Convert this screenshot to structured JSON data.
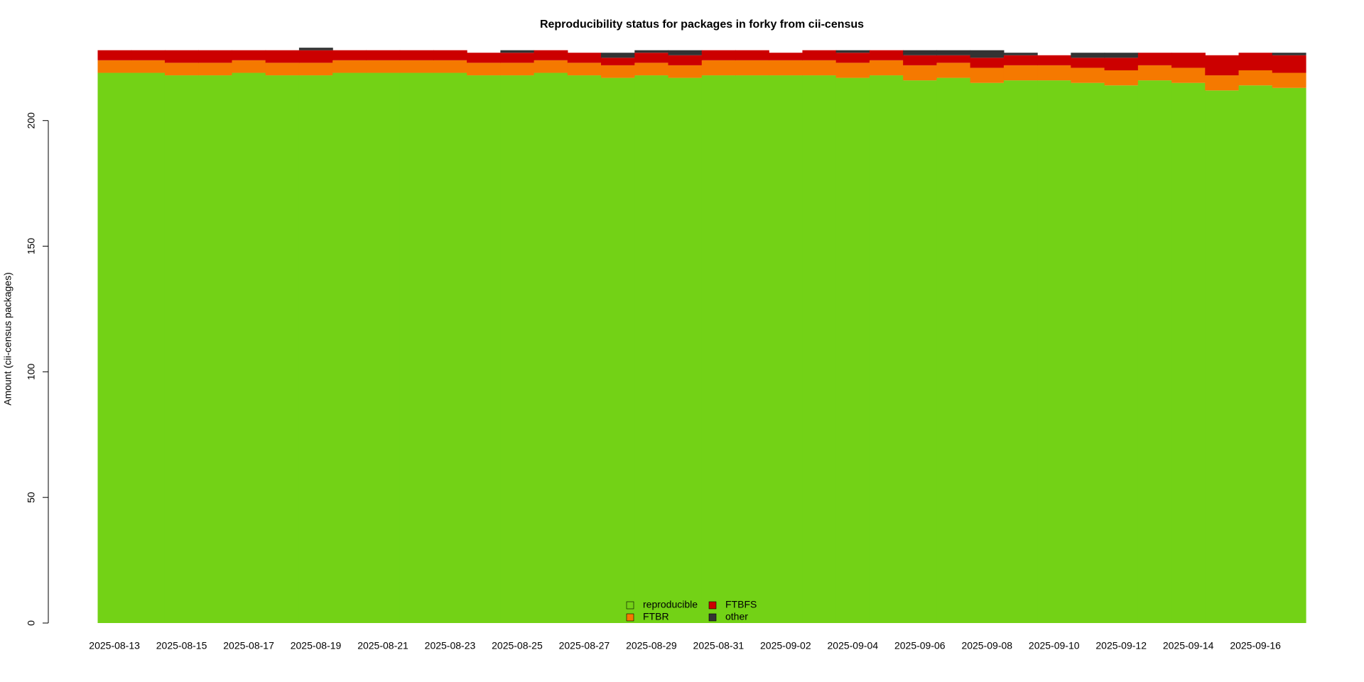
{
  "chart_data": {
    "type": "stacked_step_area",
    "title": "Reproducibility status for packages in forky from cii-census",
    "y_label": "Amount (cii-census packages)",
    "categories": [
      "2025-08-13",
      null,
      "2025-08-15",
      null,
      "2025-08-17",
      null,
      "2025-08-19",
      null,
      "2025-08-21",
      null,
      "2025-08-23",
      null,
      "2025-08-25",
      null,
      "2025-08-27",
      null,
      "2025-08-29",
      null,
      "2025-08-31",
      null,
      "2025-09-02",
      null,
      "2025-09-04",
      null,
      "2025-09-06",
      null,
      "2025-09-08",
      null,
      "2025-09-10",
      null,
      "2025-09-12",
      null,
      "2025-09-14",
      null,
      "2025-09-16",
      null
    ],
    "series": [
      {
        "name": "reproducible",
        "color": "#73d216",
        "values": [
          219,
          219,
          218,
          218,
          219,
          218,
          218,
          219,
          219,
          219,
          219,
          218,
          218,
          219,
          218,
          217,
          218,
          217,
          218,
          218,
          218,
          218,
          217,
          218,
          216,
          217,
          215,
          216,
          216,
          215,
          214,
          216,
          215,
          212,
          214,
          213
        ]
      },
      {
        "name": "FTBR",
        "color": "#f57900",
        "values": [
          5,
          5,
          5,
          5,
          5,
          5,
          5,
          5,
          5,
          5,
          5,
          5,
          5,
          5,
          5,
          5,
          5,
          5,
          6,
          6,
          6,
          6,
          6,
          6,
          6,
          6,
          6,
          6,
          6,
          6,
          6,
          6,
          6,
          6,
          6,
          6
        ]
      },
      {
        "name": "FTBFS",
        "color": "#cc0000",
        "values": [
          4,
          4,
          5,
          5,
          4,
          5,
          5,
          4,
          4,
          4,
          4,
          4,
          4,
          4,
          4,
          3,
          4,
          4,
          4,
          4,
          3,
          4,
          4,
          4,
          4,
          3,
          4,
          4,
          4,
          4,
          5,
          5,
          6,
          8,
          7,
          7
        ]
      },
      {
        "name": "other",
        "color": "#333333",
        "values": [
          0,
          0,
          0,
          0,
          0,
          0,
          1,
          0,
          0,
          0,
          0,
          0,
          1,
          0,
          0,
          2,
          1,
          2,
          0,
          0,
          0,
          0,
          1,
          0,
          2,
          2,
          3,
          1,
          0,
          2,
          2,
          0,
          0,
          0,
          0,
          1
        ]
      }
    ],
    "ylim": [
      0,
      228
    ],
    "yticks": [
      0,
      50,
      100,
      150,
      200
    ],
    "legend": "bottom"
  }
}
